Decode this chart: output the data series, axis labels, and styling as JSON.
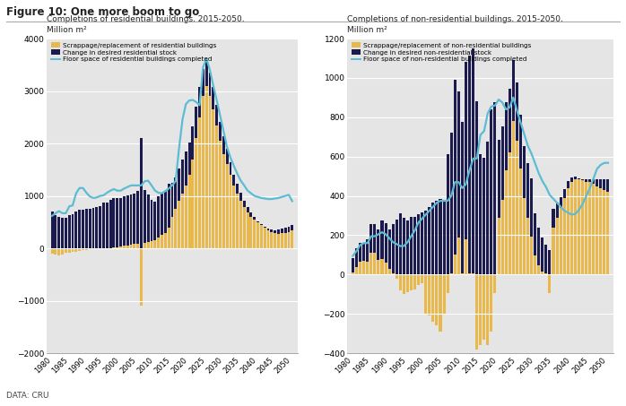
{
  "title": "Figure 10: One more boom to go",
  "source": "DATA: CRU",
  "plot_bg": "#e5e5e5",
  "fig_bg": "#ffffff",
  "gold_color": "#E8B84B",
  "navy_color": "#1a1a4e",
  "cyan_color": "#5bbcd4",
  "left_subtitle": "Completions of residential buildings, 2015-2050,\nMillion m²",
  "right_subtitle": "Completions of non-residential buildings, 2015-2050,\nMillion m²",
  "left_legend": [
    "Scrappage/replacement of residential buildings",
    "Change in desired residential stock",
    "Floor space of residential buildings completed"
  ],
  "right_legend": [
    "Scrappage/replacement of non-residential buildings",
    "Change in desired non-residential stock",
    "Floor space of non-residential buildings completed"
  ],
  "years": [
    1980,
    1981,
    1982,
    1983,
    1984,
    1985,
    1986,
    1987,
    1988,
    1989,
    1990,
    1991,
    1992,
    1993,
    1994,
    1995,
    1996,
    1997,
    1998,
    1999,
    2000,
    2001,
    2002,
    2003,
    2004,
    2005,
    2006,
    2007,
    2008,
    2009,
    2010,
    2011,
    2012,
    2013,
    2014,
    2015,
    2016,
    2017,
    2018,
    2019,
    2020,
    2021,
    2022,
    2023,
    2024,
    2025,
    2026,
    2027,
    2028,
    2029,
    2030,
    2031,
    2032,
    2033,
    2034,
    2035,
    2036,
    2037,
    2038,
    2039,
    2040,
    2041,
    2042,
    2043,
    2044,
    2045,
    2046,
    2047,
    2048,
    2049,
    2050
  ],
  "res_scrap": [
    -100,
    -120,
    -130,
    -110,
    -90,
    -80,
    -70,
    -60,
    -50,
    -40,
    -30,
    -20,
    -10,
    0,
    0,
    0,
    0,
    0,
    10,
    20,
    30,
    50,
    60,
    70,
    80,
    90,
    -1100,
    100,
    120,
    130,
    150,
    200,
    250,
    300,
    400,
    600,
    750,
    900,
    1050,
    1200,
    1400,
    1700,
    2100,
    2500,
    2900,
    3100,
    2900,
    2650,
    2350,
    2050,
    1800,
    1600,
    1400,
    1200,
    1050,
    900,
    780,
    680,
    600,
    540,
    490,
    450,
    410,
    380,
    360,
    350,
    360,
    375,
    390,
    420,
    450
  ],
  "res_change": [
    700,
    630,
    600,
    580,
    580,
    640,
    650,
    700,
    730,
    730,
    750,
    760,
    770,
    790,
    800,
    870,
    880,
    920,
    940,
    930,
    920,
    940,
    950,
    960,
    970,
    1010,
    2100,
    1020,
    900,
    800,
    740,
    800,
    800,
    800,
    830,
    650,
    600,
    620,
    640,
    650,
    620,
    620,
    600,
    580,
    520,
    490,
    450,
    420,
    390,
    360,
    330,
    290,
    250,
    210,
    175,
    155,
    130,
    110,
    80,
    55,
    30,
    10,
    -10,
    -30,
    -50,
    -65,
    -80,
    -90,
    -100,
    -110,
    -100
  ],
  "res_line": [
    620,
    670,
    710,
    670,
    670,
    800,
    820,
    1050,
    1150,
    1150,
    1060,
    990,
    960,
    970,
    1000,
    1010,
    1060,
    1100,
    1130,
    1100,
    1100,
    1140,
    1170,
    1200,
    1200,
    1200,
    1200,
    1280,
    1290,
    1200,
    1100,
    1060,
    1050,
    1090,
    1140,
    1200,
    1280,
    1900,
    2450,
    2750,
    2820,
    2830,
    2790,
    2730,
    3450,
    3620,
    3400,
    3100,
    2820,
    2530,
    2230,
    1930,
    1730,
    1570,
    1420,
    1290,
    1200,
    1100,
    1050,
    1000,
    980,
    960,
    950,
    940,
    940,
    950,
    960,
    980,
    1000,
    1020,
    900
  ],
  "nonres_scrap": [
    10,
    40,
    65,
    70,
    65,
    110,
    110,
    75,
    80,
    60,
    30,
    5,
    -20,
    -80,
    -100,
    -90,
    -80,
    -75,
    -55,
    -45,
    -200,
    -210,
    -240,
    -260,
    -290,
    -200,
    -95,
    5,
    100,
    190,
    5,
    180,
    5,
    5,
    -380,
    -360,
    -330,
    -360,
    -290,
    -95,
    290,
    380,
    530,
    620,
    780,
    680,
    540,
    390,
    290,
    195,
    95,
    45,
    15,
    5,
    -95,
    240,
    290,
    340,
    390,
    440,
    470,
    485,
    485,
    485,
    485,
    485,
    485,
    485,
    485,
    485,
    485
  ],
  "nonres_change": [
    75,
    95,
    95,
    85,
    115,
    145,
    145,
    155,
    195,
    200,
    200,
    250,
    280,
    310,
    290,
    275,
    295,
    295,
    305,
    315,
    325,
    345,
    365,
    375,
    385,
    380,
    610,
    715,
    890,
    740,
    770,
    900,
    1110,
    1145,
    880,
    610,
    595,
    675,
    840,
    875,
    395,
    375,
    345,
    325,
    310,
    295,
    275,
    265,
    275,
    295,
    215,
    195,
    175,
    145,
    125,
    95,
    75,
    55,
    45,
    35,
    25,
    15,
    5,
    -5,
    -15,
    -15,
    -25,
    -35,
    -45,
    -55,
    -65
  ],
  "nonres_line": [
    95,
    120,
    150,
    160,
    160,
    195,
    195,
    205,
    215,
    205,
    185,
    165,
    155,
    145,
    145,
    165,
    195,
    225,
    265,
    285,
    305,
    325,
    345,
    365,
    375,
    375,
    375,
    400,
    470,
    470,
    440,
    460,
    530,
    590,
    590,
    710,
    730,
    820,
    855,
    860,
    890,
    875,
    840,
    850,
    900,
    835,
    775,
    715,
    655,
    615,
    565,
    515,
    475,
    445,
    405,
    385,
    365,
    345,
    325,
    315,
    305,
    308,
    328,
    358,
    398,
    438,
    488,
    538,
    558,
    568,
    568
  ],
  "left_ylim": [
    -2000,
    4000
  ],
  "left_yticks": [
    -2000,
    -1000,
    0,
    1000,
    2000,
    3000,
    4000
  ],
  "right_ylim": [
    -400,
    1200
  ],
  "right_yticks": [
    -400,
    -200,
    0,
    200,
    400,
    600,
    800,
    1000,
    1200
  ],
  "xticks": [
    1980,
    1985,
    1990,
    1995,
    2000,
    2005,
    2010,
    2015,
    2020,
    2025,
    2030,
    2035,
    2040,
    2045,
    2050
  ]
}
